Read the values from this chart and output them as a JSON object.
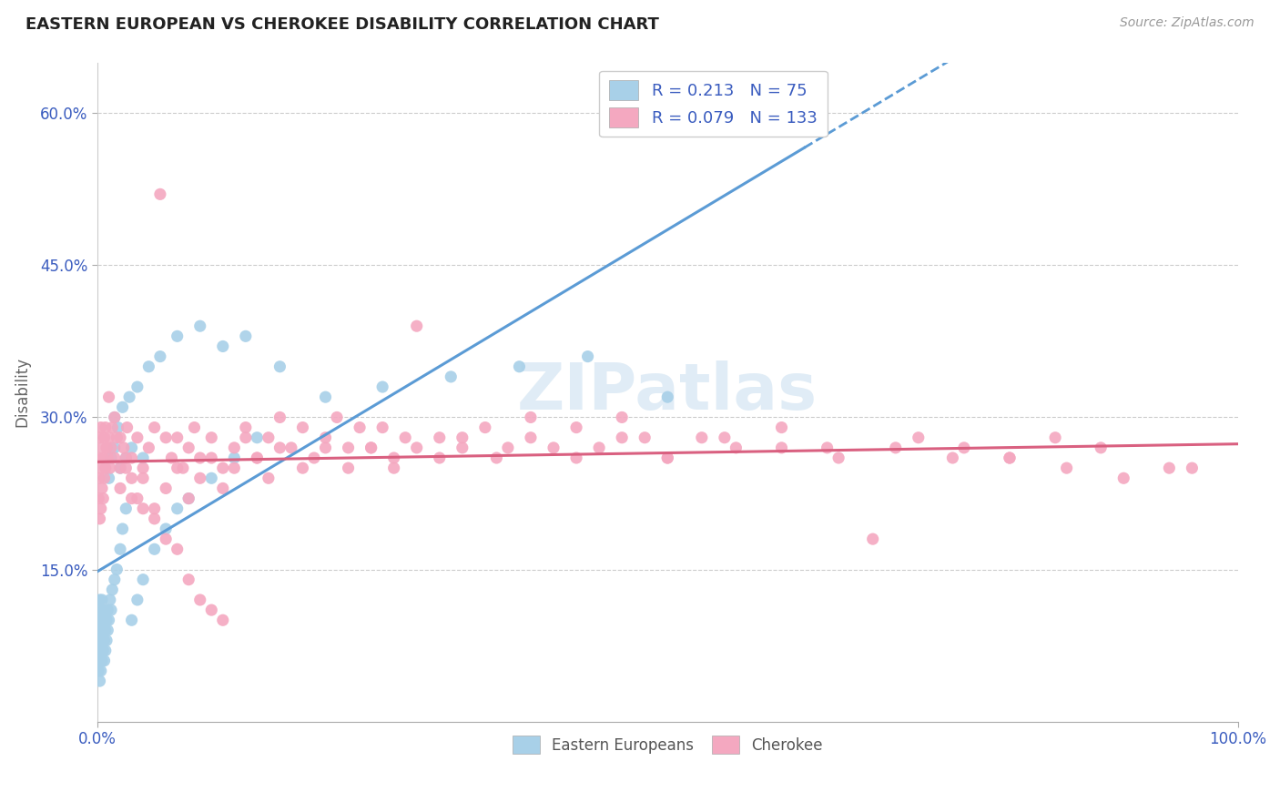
{
  "title": "EASTERN EUROPEAN VS CHEROKEE DISABILITY CORRELATION CHART",
  "source_text": "Source: ZipAtlas.com",
  "ylabel": "Disability",
  "y_tick_values": [
    0.15,
    0.3,
    0.45,
    0.6
  ],
  "legend_R1": "0.213",
  "legend_N1": "75",
  "legend_R2": "0.079",
  "legend_N2": "133",
  "series1_color": "#a8d0e8",
  "series2_color": "#f4a8c0",
  "trend1_color": "#5b9bd5",
  "trend2_color": "#d96080",
  "blue_color": "#3a5cbf",
  "series1_name": "Eastern Europeans",
  "series2_name": "Cherokee",
  "ee_x": [
    0.001,
    0.001,
    0.001,
    0.002,
    0.002,
    0.002,
    0.002,
    0.002,
    0.002,
    0.002,
    0.003,
    0.003,
    0.003,
    0.003,
    0.003,
    0.004,
    0.004,
    0.004,
    0.004,
    0.005,
    0.005,
    0.005,
    0.006,
    0.006,
    0.006,
    0.007,
    0.007,
    0.008,
    0.008,
    0.009,
    0.009,
    0.01,
    0.011,
    0.012,
    0.013,
    0.015,
    0.017,
    0.02,
    0.022,
    0.025,
    0.03,
    0.035,
    0.04,
    0.05,
    0.06,
    0.07,
    0.08,
    0.1,
    0.12,
    0.14,
    0.015,
    0.018,
    0.022,
    0.028,
    0.035,
    0.045,
    0.055,
    0.07,
    0.09,
    0.11,
    0.13,
    0.16,
    0.2,
    0.25,
    0.31,
    0.37,
    0.43,
    0.5,
    0.01,
    0.012,
    0.015,
    0.02,
    0.025,
    0.03,
    0.04
  ],
  "ee_y": [
    0.05,
    0.07,
    0.09,
    0.04,
    0.06,
    0.08,
    0.1,
    0.11,
    0.12,
    0.06,
    0.05,
    0.07,
    0.09,
    0.08,
    0.1,
    0.06,
    0.08,
    0.1,
    0.12,
    0.07,
    0.09,
    0.11,
    0.06,
    0.08,
    0.1,
    0.07,
    0.09,
    0.08,
    0.1,
    0.09,
    0.11,
    0.1,
    0.12,
    0.11,
    0.13,
    0.14,
    0.15,
    0.17,
    0.19,
    0.21,
    0.1,
    0.12,
    0.14,
    0.17,
    0.19,
    0.21,
    0.22,
    0.24,
    0.26,
    0.28,
    0.3,
    0.29,
    0.31,
    0.32,
    0.33,
    0.35,
    0.36,
    0.38,
    0.39,
    0.37,
    0.38,
    0.35,
    0.32,
    0.33,
    0.34,
    0.35,
    0.36,
    0.32,
    0.24,
    0.26,
    0.27,
    0.25,
    0.26,
    0.27,
    0.26
  ],
  "ch_x": [
    0.001,
    0.001,
    0.002,
    0.002,
    0.002,
    0.003,
    0.003,
    0.003,
    0.004,
    0.004,
    0.005,
    0.005,
    0.006,
    0.006,
    0.007,
    0.007,
    0.008,
    0.009,
    0.01,
    0.011,
    0.012,
    0.013,
    0.015,
    0.017,
    0.02,
    0.023,
    0.026,
    0.03,
    0.035,
    0.04,
    0.045,
    0.05,
    0.055,
    0.06,
    0.065,
    0.07,
    0.075,
    0.08,
    0.085,
    0.09,
    0.1,
    0.11,
    0.12,
    0.13,
    0.14,
    0.15,
    0.16,
    0.17,
    0.18,
    0.19,
    0.2,
    0.21,
    0.22,
    0.23,
    0.24,
    0.25,
    0.26,
    0.27,
    0.28,
    0.3,
    0.32,
    0.34,
    0.36,
    0.38,
    0.4,
    0.42,
    0.44,
    0.46,
    0.48,
    0.5,
    0.53,
    0.56,
    0.6,
    0.64,
    0.68,
    0.72,
    0.76,
    0.8,
    0.84,
    0.88,
    0.02,
    0.025,
    0.03,
    0.04,
    0.05,
    0.06,
    0.07,
    0.08,
    0.09,
    0.1,
    0.11,
    0.12,
    0.13,
    0.14,
    0.15,
    0.16,
    0.18,
    0.2,
    0.22,
    0.24,
    0.26,
    0.28,
    0.3,
    0.32,
    0.35,
    0.38,
    0.42,
    0.46,
    0.5,
    0.55,
    0.6,
    0.65,
    0.7,
    0.75,
    0.8,
    0.85,
    0.9,
    0.94,
    0.96,
    0.01,
    0.015,
    0.02,
    0.025,
    0.03,
    0.035,
    0.04,
    0.05,
    0.06,
    0.07,
    0.08,
    0.09,
    0.1,
    0.11
  ],
  "ch_y": [
    0.22,
    0.26,
    0.2,
    0.24,
    0.28,
    0.21,
    0.25,
    0.29,
    0.23,
    0.27,
    0.22,
    0.26,
    0.24,
    0.28,
    0.25,
    0.29,
    0.27,
    0.26,
    0.28,
    0.25,
    0.27,
    0.29,
    0.26,
    0.28,
    0.25,
    0.27,
    0.29,
    0.26,
    0.28,
    0.25,
    0.27,
    0.29,
    0.52,
    0.28,
    0.26,
    0.28,
    0.25,
    0.27,
    0.29,
    0.26,
    0.28,
    0.25,
    0.27,
    0.29,
    0.26,
    0.28,
    0.3,
    0.27,
    0.29,
    0.26,
    0.28,
    0.3,
    0.27,
    0.29,
    0.27,
    0.29,
    0.26,
    0.28,
    0.39,
    0.28,
    0.27,
    0.29,
    0.27,
    0.3,
    0.27,
    0.29,
    0.27,
    0.3,
    0.28,
    0.26,
    0.28,
    0.27,
    0.29,
    0.27,
    0.18,
    0.28,
    0.27,
    0.26,
    0.28,
    0.27,
    0.23,
    0.25,
    0.22,
    0.24,
    0.21,
    0.23,
    0.25,
    0.22,
    0.24,
    0.26,
    0.23,
    0.25,
    0.28,
    0.26,
    0.24,
    0.27,
    0.25,
    0.27,
    0.25,
    0.27,
    0.25,
    0.27,
    0.26,
    0.28,
    0.26,
    0.28,
    0.26,
    0.28,
    0.26,
    0.28,
    0.27,
    0.26,
    0.27,
    0.26,
    0.26,
    0.25,
    0.24,
    0.25,
    0.25,
    0.32,
    0.3,
    0.28,
    0.26,
    0.24,
    0.22,
    0.21,
    0.2,
    0.18,
    0.17,
    0.14,
    0.12,
    0.11,
    0.1
  ]
}
